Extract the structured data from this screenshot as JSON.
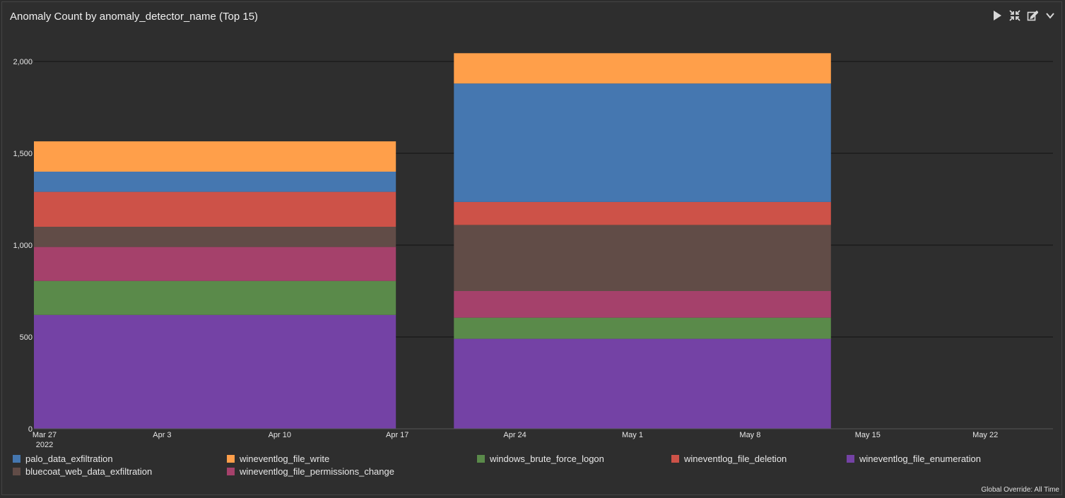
{
  "panel": {
    "title": "Anomaly Count by anomaly_detector_name (Top 15)",
    "footer": "Global Override: All Time"
  },
  "toolbar": {
    "icons": [
      "play-icon",
      "collapse-icon",
      "edit-icon",
      "chevron-down-icon"
    ]
  },
  "colors": {
    "palo_data_exfiltration": "#4577b0",
    "wineventlog_file_write": "#ff9f4a",
    "windows_brute_force_logon": "#5a8a4a",
    "wineventlog_file_deletion": "#cd5248",
    "wineventlog_file_enumeration": "#7442a5",
    "bluecoat_web_data_exfiltration": "#614c47",
    "wineventlog_file_permissions_change": "#a5416b"
  },
  "legend": [
    "palo_data_exfiltration",
    "wineventlog_file_write",
    "windows_brute_force_logon",
    "wineventlog_file_deletion",
    "wineventlog_file_enumeration",
    "bluecoat_web_data_exfiltration",
    "wineventlog_file_permissions_change"
  ],
  "chart_data": {
    "type": "bar",
    "stacked": true,
    "x_ticks": [
      "Mar 27",
      "Apr 3",
      "Apr 10",
      "Apr 17",
      "Apr 24",
      "May 1",
      "May 8",
      "May 15",
      "May 22"
    ],
    "x_tick_sublabel": "2022",
    "ylim": [
      0,
      2100
    ],
    "y_ticks": [
      0,
      500,
      1000,
      1500,
      2000
    ],
    "y_tick_labels": [
      "0",
      "500",
      "1,000",
      "1,500",
      "2,000"
    ],
    "grid": true,
    "legend_position": "bottom",
    "bars": [
      {
        "start": "Mar 27",
        "end": "Apr 17",
        "stack": [
          {
            "series": "wineventlog_file_enumeration",
            "value": 620
          },
          {
            "series": "windows_brute_force_logon",
            "value": 185
          },
          {
            "series": "wineventlog_file_permissions_change",
            "value": 185
          },
          {
            "series": "bluecoat_web_data_exfiltration",
            "value": 110
          },
          {
            "series": "wineventlog_file_deletion",
            "value": 190
          },
          {
            "series": "palo_data_exfiltration",
            "value": 110
          },
          {
            "series": "wineventlog_file_write",
            "value": 165
          }
        ]
      },
      {
        "start": "Apr 21",
        "end": "May 15",
        "stack": [
          {
            "series": "wineventlog_file_enumeration",
            "value": 490
          },
          {
            "series": "windows_brute_force_logon",
            "value": 115
          },
          {
            "series": "wineventlog_file_permissions_change",
            "value": 145
          },
          {
            "series": "bluecoat_web_data_exfiltration",
            "value": 360
          },
          {
            "series": "wineventlog_file_deletion",
            "value": 125
          },
          {
            "series": "palo_data_exfiltration",
            "value": 645
          },
          {
            "series": "wineventlog_file_write",
            "value": 165
          }
        ]
      }
    ]
  }
}
